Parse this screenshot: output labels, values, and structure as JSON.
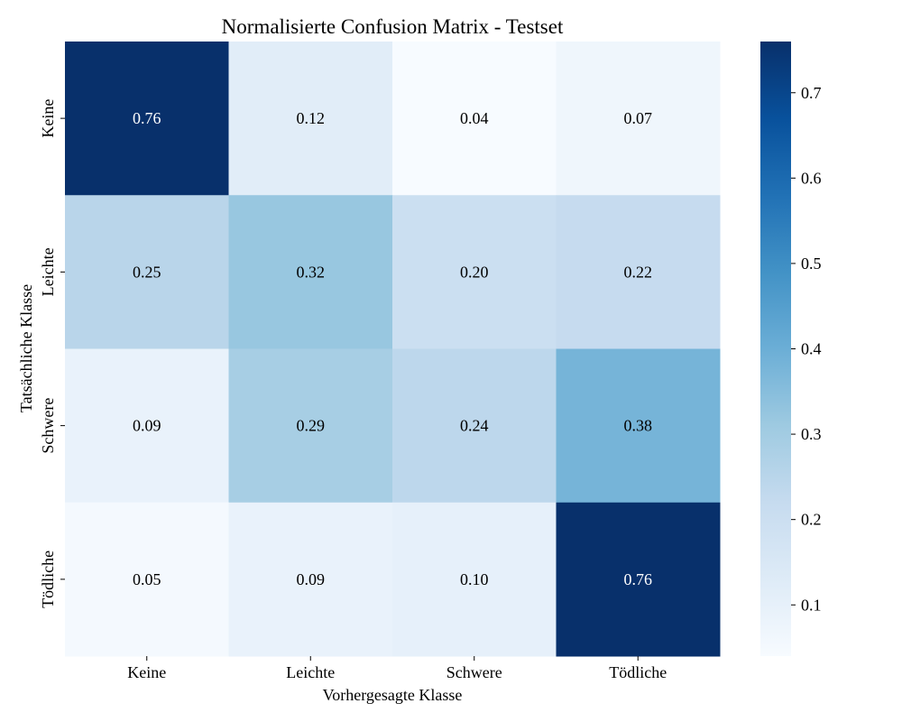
{
  "chart_data": {
    "type": "heatmap",
    "title": "Normalisierte Confusion Matrix - Testset",
    "xlabel": "Vorhergesagte Klasse",
    "ylabel": "Tatsächliche Klasse",
    "x_categories": [
      "Keine",
      "Leichte",
      "Schwere",
      "Tödliche"
    ],
    "y_categories": [
      "Keine",
      "Leichte",
      "Schwere",
      "Tödliche"
    ],
    "values": [
      [
        0.76,
        0.12,
        0.04,
        0.07
      ],
      [
        0.25,
        0.32,
        0.2,
        0.22
      ],
      [
        0.09,
        0.29,
        0.24,
        0.38
      ],
      [
        0.05,
        0.09,
        0.1,
        0.76
      ]
    ],
    "annotation_labels": [
      [
        "0.76",
        "0.12",
        "0.04",
        "0.07"
      ],
      [
        "0.25",
        "0.32",
        "0.20",
        "0.22"
      ],
      [
        "0.09",
        "0.29",
        "0.24",
        "0.38"
      ],
      [
        "0.05",
        "0.09",
        "0.10",
        "0.76"
      ]
    ],
    "colormap": "Blues",
    "colorbar": {
      "range": [
        0.04,
        0.76
      ],
      "ticks": [
        0.1,
        0.2,
        0.3,
        0.4,
        0.5,
        0.6,
        0.7
      ],
      "tick_labels": [
        "0.1",
        "0.2",
        "0.3",
        "0.4",
        "0.5",
        "0.6",
        "0.7"
      ]
    }
  }
}
